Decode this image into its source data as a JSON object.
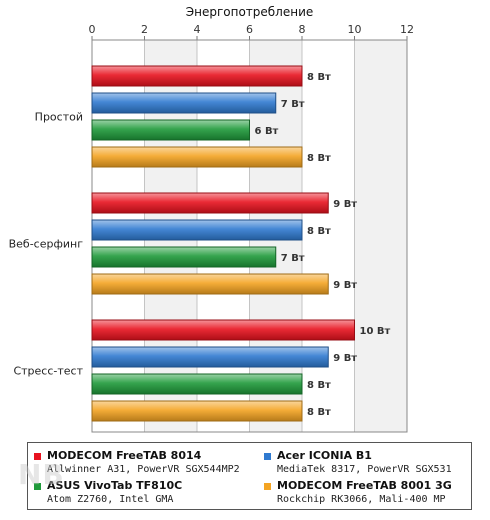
{
  "chart_data": {
    "type": "bar",
    "orientation": "horizontal",
    "title": "Энергопотребление",
    "xlim": [
      0,
      12
    ],
    "xticks": [
      "0",
      "2",
      "4",
      "6",
      "8",
      "10",
      "12"
    ],
    "grid": true,
    "categories": [
      "Простой",
      "Веб-серфинг",
      "Стресс-тест"
    ],
    "series": [
      {
        "name": "MODECOM FreeTAB 8014",
        "description": "Allwinner A31, PowerVR SGX544MP2",
        "color": "#e8121f",
        "values": [
          8,
          9,
          10
        ],
        "labels": [
          "8 Вт",
          "9 Вт",
          "10 Вт"
        ]
      },
      {
        "name": "Acer ICONIA B1",
        "description": "MediaTek 8317, PowerVR SGX531",
        "color": "#2f7ad0",
        "values": [
          7,
          8,
          9
        ],
        "labels": [
          "7 Вт",
          "8 Вт",
          "9 Вт"
        ]
      },
      {
        "name": "ASUS VivoTab TF810C",
        "description": "Atom Z2760, Intel GMA",
        "color": "#1f9a3a",
        "values": [
          6,
          7,
          8
        ],
        "labels": [
          "6 Вт",
          "7 Вт",
          "8 Вт"
        ]
      },
      {
        "name": "MODECOM FreeTAB 8001 3G",
        "description": "Rockchip RK3066, Mali-400 MP",
        "color": "#f4a422",
        "values": [
          8,
          9,
          8
        ],
        "labels": [
          "8 Вт",
          "9 Вт",
          "8 Вт"
        ]
      }
    ],
    "legend_position": "bottom"
  },
  "watermark": {
    "text": "NOTEBOOK",
    "subtext": "CHECK",
    "icon": "notebookcheck-logo-icon"
  }
}
